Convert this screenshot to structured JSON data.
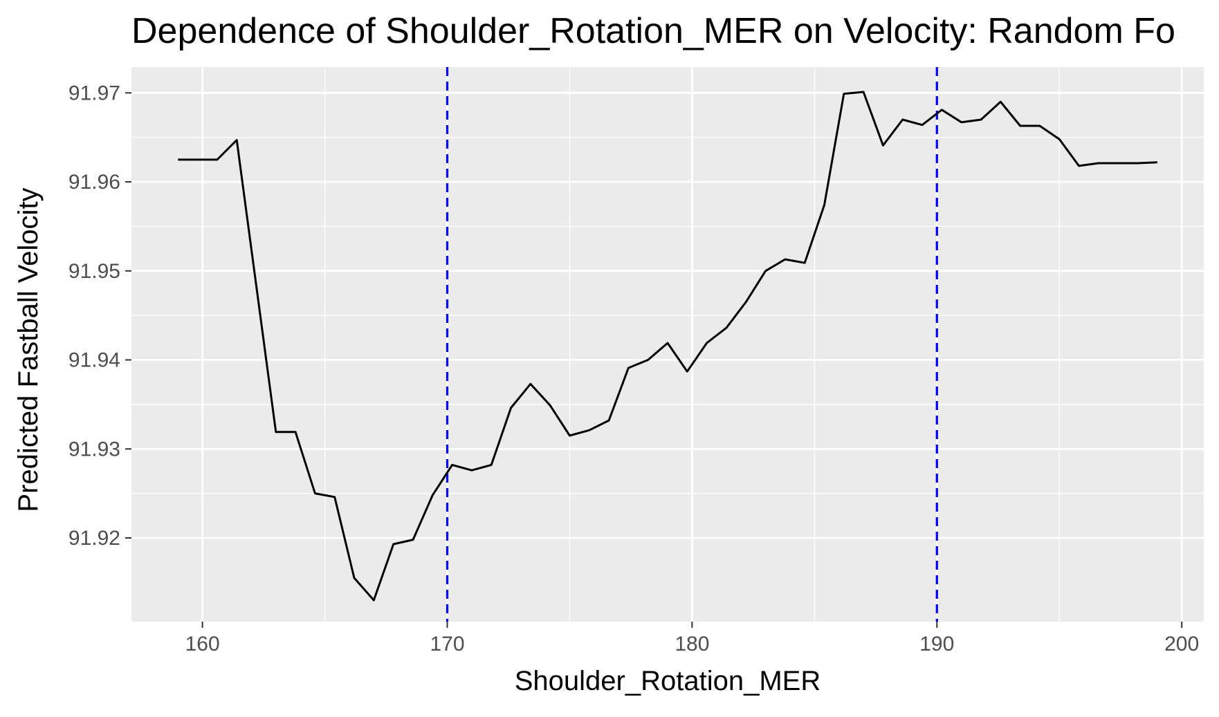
{
  "chart_data": {
    "type": "line",
    "title": "Dependence of Shoulder_Rotation_MER on Velocity: Random Fo",
    "xlabel": "Shoulder_Rotation_MER",
    "ylabel": "Predicted Fastball Velocity",
    "xlim": [
      157.1,
      200.9
    ],
    "ylim": [
      91.9106,
      91.9729
    ],
    "x_ticks": [
      160,
      170,
      180,
      190,
      200
    ],
    "x_tick_labels": [
      "160",
      "170",
      "180",
      "190",
      "200"
    ],
    "y_ticks": [
      91.92,
      91.93,
      91.94,
      91.95,
      91.96,
      91.97
    ],
    "y_tick_labels": [
      "91.92",
      "91.93",
      "91.94",
      "91.95",
      "91.96",
      "91.97"
    ],
    "grid": true,
    "background": "#ebebeb",
    "series": [
      {
        "color": "#000000",
        "x": [
          159.0,
          159.8,
          160.6,
          161.4,
          162.2,
          163.0,
          163.8,
          164.6,
          165.4,
          166.2,
          167.0,
          167.8,
          168.6,
          169.4,
          170.2,
          171.0,
          171.8,
          172.6,
          173.4,
          174.2,
          175.0,
          175.8,
          176.6,
          177.4,
          178.2,
          179.0,
          179.8,
          180.6,
          181.4,
          182.2,
          183.0,
          183.8,
          184.6,
          185.4,
          186.2,
          187.0,
          187.8,
          188.6,
          189.4,
          190.2,
          191.0,
          191.8,
          192.6,
          193.4,
          194.2,
          195.0,
          195.8,
          196.6,
          197.4,
          198.2,
          199.0
        ],
        "y": [
          91.9625,
          91.9625,
          91.9625,
          91.9647,
          91.9483,
          91.9319,
          91.9319,
          91.925,
          91.9246,
          91.9155,
          91.913,
          91.9193,
          91.9198,
          91.9248,
          91.9282,
          91.9276,
          91.9282,
          91.9346,
          91.9373,
          91.9349,
          91.9315,
          91.9321,
          91.9332,
          91.9391,
          91.94,
          91.9419,
          91.9387,
          91.9419,
          91.9436,
          91.9465,
          91.95,
          91.9513,
          91.9509,
          91.9574,
          91.9699,
          91.9701,
          91.9641,
          91.967,
          91.9664,
          91.9681,
          91.9667,
          91.967,
          91.969,
          91.9663,
          91.9663,
          91.9648,
          91.9618,
          91.9621,
          91.9621,
          91.9621,
          91.9622
        ]
      }
    ],
    "annotations": [
      {
        "type": "vline",
        "x": 170,
        "color": "#0000ff",
        "style": "dashed"
      },
      {
        "type": "vline",
        "x": 190,
        "color": "#0000ff",
        "style": "dashed"
      }
    ]
  }
}
